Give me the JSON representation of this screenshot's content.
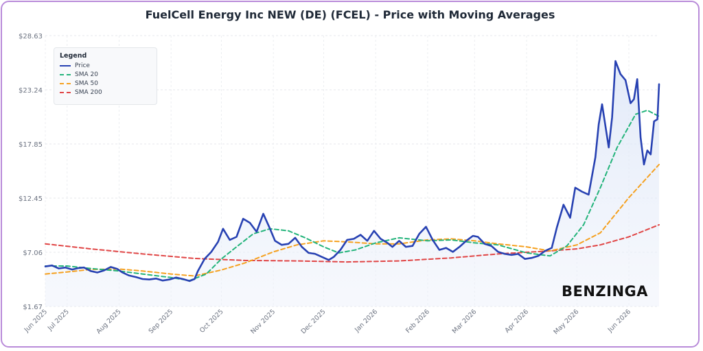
{
  "title": "FuelCell Energy Inc NEW (DE) (FCEL) - Price with Moving Averages",
  "logo_text": "BENZINGA",
  "legend": {
    "title": "Legend",
    "items": [
      {
        "label": "Price",
        "color": "#2741b2",
        "style": "solid"
      },
      {
        "label": "SMA 20",
        "color": "#22b37a",
        "style": "dashed"
      },
      {
        "label": "SMA 50",
        "color": "#f5a01e",
        "style": "dashed"
      },
      {
        "label": "SMA 200",
        "color": "#e04444",
        "style": "dashed"
      }
    ]
  },
  "chart_data": {
    "type": "line",
    "title": "FuelCell Energy Inc NEW (DE) (FCEL) - Price with Moving Averages",
    "xlabel": "",
    "ylabel": "",
    "ylim": [
      1.67,
      28.63
    ],
    "y_ticks": [
      "$1.67",
      "$7.06",
      "$12.45",
      "$17.85",
      "$23.24",
      "$28.63"
    ],
    "x_tick_labels": [
      "Jun 2025",
      "Jul 2025",
      "Aug 2025",
      "Sep 2025",
      "Oct 2025",
      "Nov 2025",
      "Dec 2025",
      "Jan 2026",
      "Feb 2026",
      "Mar 2026",
      "Apr 2026",
      "May 2026",
      "Jun 2026"
    ],
    "grid": true,
    "legend_position": "top-left",
    "x_range": [
      "2025-06-18",
      "2026-06-19"
    ],
    "series": [
      {
        "name": "Price",
        "color": "#2741b2",
        "points": [
          [
            "2025-06-18",
            5.65
          ],
          [
            "2025-06-22",
            5.75
          ],
          [
            "2025-06-26",
            5.45
          ],
          [
            "2025-06-30",
            5.55
          ],
          [
            "2025-07-04",
            5.35
          ],
          [
            "2025-07-08",
            5.5
          ],
          [
            "2025-07-11",
            5.55
          ],
          [
            "2025-07-15",
            5.2
          ],
          [
            "2025-07-19",
            5.05
          ],
          [
            "2025-07-23",
            5.25
          ],
          [
            "2025-07-27",
            5.6
          ],
          [
            "2025-07-31",
            5.4
          ],
          [
            "2025-08-03",
            5.05
          ],
          [
            "2025-08-07",
            4.75
          ],
          [
            "2025-08-11",
            4.6
          ],
          [
            "2025-08-15",
            4.4
          ],
          [
            "2025-08-19",
            4.35
          ],
          [
            "2025-08-23",
            4.45
          ],
          [
            "2025-08-27",
            4.25
          ],
          [
            "2025-08-31",
            4.35
          ],
          [
            "2025-09-04",
            4.55
          ],
          [
            "2025-09-08",
            4.4
          ],
          [
            "2025-09-12",
            4.2
          ],
          [
            "2025-09-15",
            4.4
          ],
          [
            "2025-09-17",
            5.2
          ],
          [
            "2025-09-21",
            6.4
          ],
          [
            "2025-09-25",
            7.1
          ],
          [
            "2025-09-29",
            8.1
          ],
          [
            "2025-10-02",
            9.4
          ],
          [
            "2025-10-06",
            8.3
          ],
          [
            "2025-10-10",
            8.6
          ],
          [
            "2025-10-14",
            10.4
          ],
          [
            "2025-10-18",
            10.0
          ],
          [
            "2025-10-22",
            9.1
          ],
          [
            "2025-10-26",
            10.9
          ],
          [
            "2025-10-30",
            9.4
          ],
          [
            "2025-11-02",
            8.2
          ],
          [
            "2025-11-06",
            7.8
          ],
          [
            "2025-11-10",
            7.9
          ],
          [
            "2025-11-14",
            8.5
          ],
          [
            "2025-11-18",
            7.6
          ],
          [
            "2025-11-22",
            7.0
          ],
          [
            "2025-11-26",
            6.9
          ],
          [
            "2025-11-30",
            6.6
          ],
          [
            "2025-12-04",
            6.3
          ],
          [
            "2025-12-07",
            6.6
          ],
          [
            "2025-12-11",
            7.3
          ],
          [
            "2025-12-15",
            8.3
          ],
          [
            "2025-12-19",
            8.4
          ],
          [
            "2025-12-23",
            8.8
          ],
          [
            "2025-12-27",
            8.2
          ],
          [
            "2025-12-31",
            9.2
          ],
          [
            "2026-01-04",
            8.4
          ],
          [
            "2026-01-08",
            8.0
          ],
          [
            "2026-01-11",
            7.6
          ],
          [
            "2026-01-15",
            8.2
          ],
          [
            "2026-01-19",
            7.6
          ],
          [
            "2026-01-23",
            7.7
          ],
          [
            "2026-01-27",
            8.9
          ],
          [
            "2026-01-31",
            9.6
          ],
          [
            "2026-02-04",
            8.3
          ],
          [
            "2026-02-08",
            7.3
          ],
          [
            "2026-02-12",
            7.5
          ],
          [
            "2026-02-16",
            7.1
          ],
          [
            "2026-02-20",
            7.6
          ],
          [
            "2026-02-24",
            8.2
          ],
          [
            "2026-02-28",
            8.7
          ],
          [
            "2026-03-03",
            8.6
          ],
          [
            "2026-03-07",
            7.9
          ],
          [
            "2026-03-11",
            7.7
          ],
          [
            "2026-03-15",
            7.1
          ],
          [
            "2026-03-19",
            6.9
          ],
          [
            "2026-03-23",
            6.8
          ],
          [
            "2026-03-27",
            6.9
          ],
          [
            "2026-03-31",
            6.4
          ],
          [
            "2026-04-04",
            6.5
          ],
          [
            "2026-04-08",
            6.7
          ],
          [
            "2026-04-12",
            7.2
          ],
          [
            "2026-04-16",
            7.5
          ],
          [
            "2026-04-19",
            9.5
          ],
          [
            "2026-04-23",
            11.8
          ],
          [
            "2026-04-27",
            10.5
          ],
          [
            "2026-04-30",
            13.5
          ],
          [
            "2026-05-04",
            13.1
          ],
          [
            "2026-05-08",
            12.8
          ],
          [
            "2026-05-12",
            16.5
          ],
          [
            "2026-05-14",
            19.8
          ],
          [
            "2026-05-16",
            21.8
          ],
          [
            "2026-05-20",
            17.5
          ],
          [
            "2026-05-22",
            20.5
          ],
          [
            "2026-05-24",
            26.1
          ],
          [
            "2026-05-27",
            24.8
          ],
          [
            "2026-05-30",
            24.2
          ],
          [
            "2026-06-02",
            21.9
          ],
          [
            "2026-06-04",
            22.3
          ],
          [
            "2026-06-06",
            24.3
          ],
          [
            "2026-06-08",
            18.5
          ],
          [
            "2026-06-10",
            15.8
          ],
          [
            "2026-06-12",
            17.2
          ],
          [
            "2026-06-14",
            16.8
          ],
          [
            "2026-06-16",
            20.1
          ],
          [
            "2026-06-18",
            20.3
          ],
          [
            "2026-06-19",
            23.8
          ]
        ]
      },
      {
        "name": "SMA 20",
        "color": "#22b37a",
        "points": [
          [
            "2025-06-18",
            5.7
          ],
          [
            "2025-07-01",
            5.7
          ],
          [
            "2025-07-15",
            5.45
          ],
          [
            "2025-08-01",
            5.2
          ],
          [
            "2025-08-15",
            4.9
          ],
          [
            "2025-09-01",
            4.55
          ],
          [
            "2025-09-12",
            4.25
          ],
          [
            "2025-09-22",
            4.9
          ],
          [
            "2025-10-01",
            6.4
          ],
          [
            "2025-10-10",
            7.6
          ],
          [
            "2025-10-20",
            8.9
          ],
          [
            "2025-10-30",
            9.4
          ],
          [
            "2025-11-10",
            9.2
          ],
          [
            "2025-11-20",
            8.5
          ],
          [
            "2025-12-01",
            7.6
          ],
          [
            "2025-12-10",
            7.0
          ],
          [
            "2025-12-20",
            7.3
          ],
          [
            "2026-01-01",
            8.0
          ],
          [
            "2026-01-15",
            8.5
          ],
          [
            "2026-02-01",
            8.2
          ],
          [
            "2026-02-15",
            8.3
          ],
          [
            "2026-03-01",
            8.0
          ],
          [
            "2026-03-15",
            7.8
          ],
          [
            "2026-04-01",
            7.0
          ],
          [
            "2026-04-15",
            6.7
          ],
          [
            "2026-04-25",
            7.7
          ],
          [
            "2026-05-05",
            9.8
          ],
          [
            "2026-05-15",
            13.5
          ],
          [
            "2026-05-25",
            17.5
          ],
          [
            "2026-06-05",
            20.8
          ],
          [
            "2026-06-12",
            21.2
          ],
          [
            "2026-06-19",
            20.6
          ]
        ]
      },
      {
        "name": "SMA 50",
        "color": "#f5a01e",
        "points": [
          [
            "2025-06-18",
            4.9
          ],
          [
            "2025-07-01",
            5.1
          ],
          [
            "2025-07-15",
            5.35
          ],
          [
            "2025-08-01",
            5.4
          ],
          [
            "2025-08-15",
            5.2
          ],
          [
            "2025-09-01",
            4.9
          ],
          [
            "2025-09-15",
            4.7
          ],
          [
            "2025-10-01",
            5.3
          ],
          [
            "2025-10-15",
            6.0
          ],
          [
            "2025-11-01",
            7.1
          ],
          [
            "2025-11-15",
            7.8
          ],
          [
            "2025-12-01",
            8.2
          ],
          [
            "2025-12-15",
            8.1
          ],
          [
            "2026-01-01",
            7.9
          ],
          [
            "2026-01-15",
            7.9
          ],
          [
            "2026-02-01",
            8.3
          ],
          [
            "2026-02-15",
            8.4
          ],
          [
            "2026-03-01",
            8.2
          ],
          [
            "2026-03-15",
            7.9
          ],
          [
            "2026-04-01",
            7.6
          ],
          [
            "2026-04-15",
            7.2
          ],
          [
            "2026-05-01",
            7.8
          ],
          [
            "2026-05-15",
            9.0
          ],
          [
            "2026-06-01",
            12.5
          ],
          [
            "2026-06-19",
            15.8
          ]
        ]
      },
      {
        "name": "SMA 200",
        "color": "#e04444",
        "points": [
          [
            "2025-06-18",
            7.9
          ],
          [
            "2025-07-15",
            7.4
          ],
          [
            "2025-08-15",
            6.9
          ],
          [
            "2025-09-15",
            6.45
          ],
          [
            "2025-10-15",
            6.25
          ],
          [
            "2025-11-15",
            6.2
          ],
          [
            "2025-12-15",
            6.1
          ],
          [
            "2026-01-15",
            6.2
          ],
          [
            "2026-02-15",
            6.5
          ],
          [
            "2026-03-15",
            6.9
          ],
          [
            "2026-04-15",
            7.2
          ],
          [
            "2026-05-01",
            7.4
          ],
          [
            "2026-05-15",
            7.8
          ],
          [
            "2026-06-01",
            8.6
          ],
          [
            "2026-06-19",
            9.8
          ]
        ]
      }
    ]
  }
}
